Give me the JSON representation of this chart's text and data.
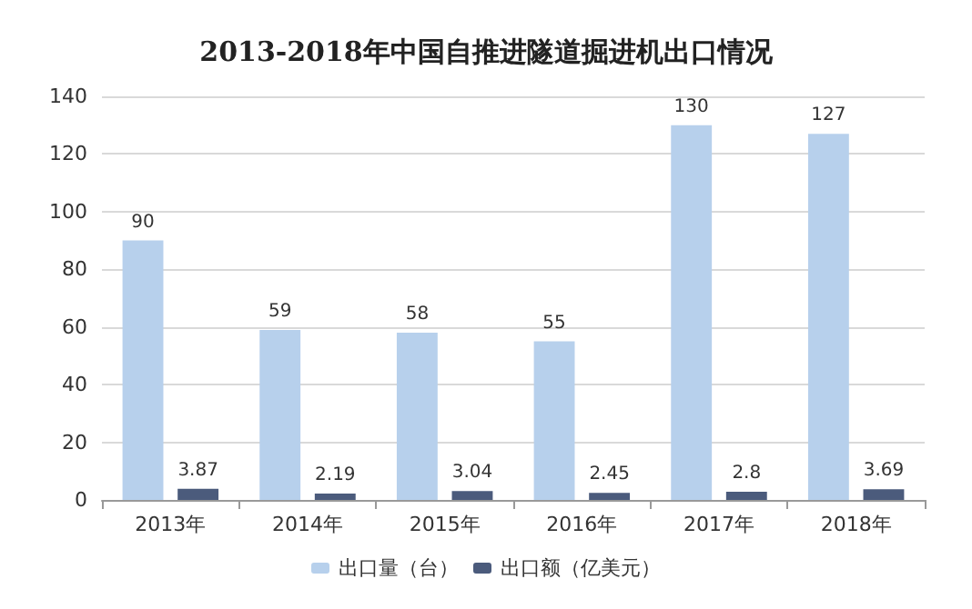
{
  "chart_data": {
    "type": "bar",
    "title": "2013-2018年中国自推进隧道掘进机出口情况",
    "categories": [
      "2013年",
      "2014年",
      "2015年",
      "2016年",
      "2017年",
      "2018年"
    ],
    "series": [
      {
        "name": "出口量（台）",
        "color": "#b7d0ec",
        "values": [
          90,
          59,
          58,
          55,
          130,
          127
        ]
      },
      {
        "name": "出口额（亿美元）",
        "color": "#4b5b7c",
        "values": [
          3.87,
          2.19,
          3.04,
          2.45,
          2.8,
          3.69
        ]
      }
    ],
    "ylim": [
      0,
      140
    ],
    "yticks": [
      0,
      20,
      40,
      60,
      80,
      100,
      120,
      140
    ],
    "grid": "y",
    "legend": "bottom",
    "data_labels": true
  }
}
